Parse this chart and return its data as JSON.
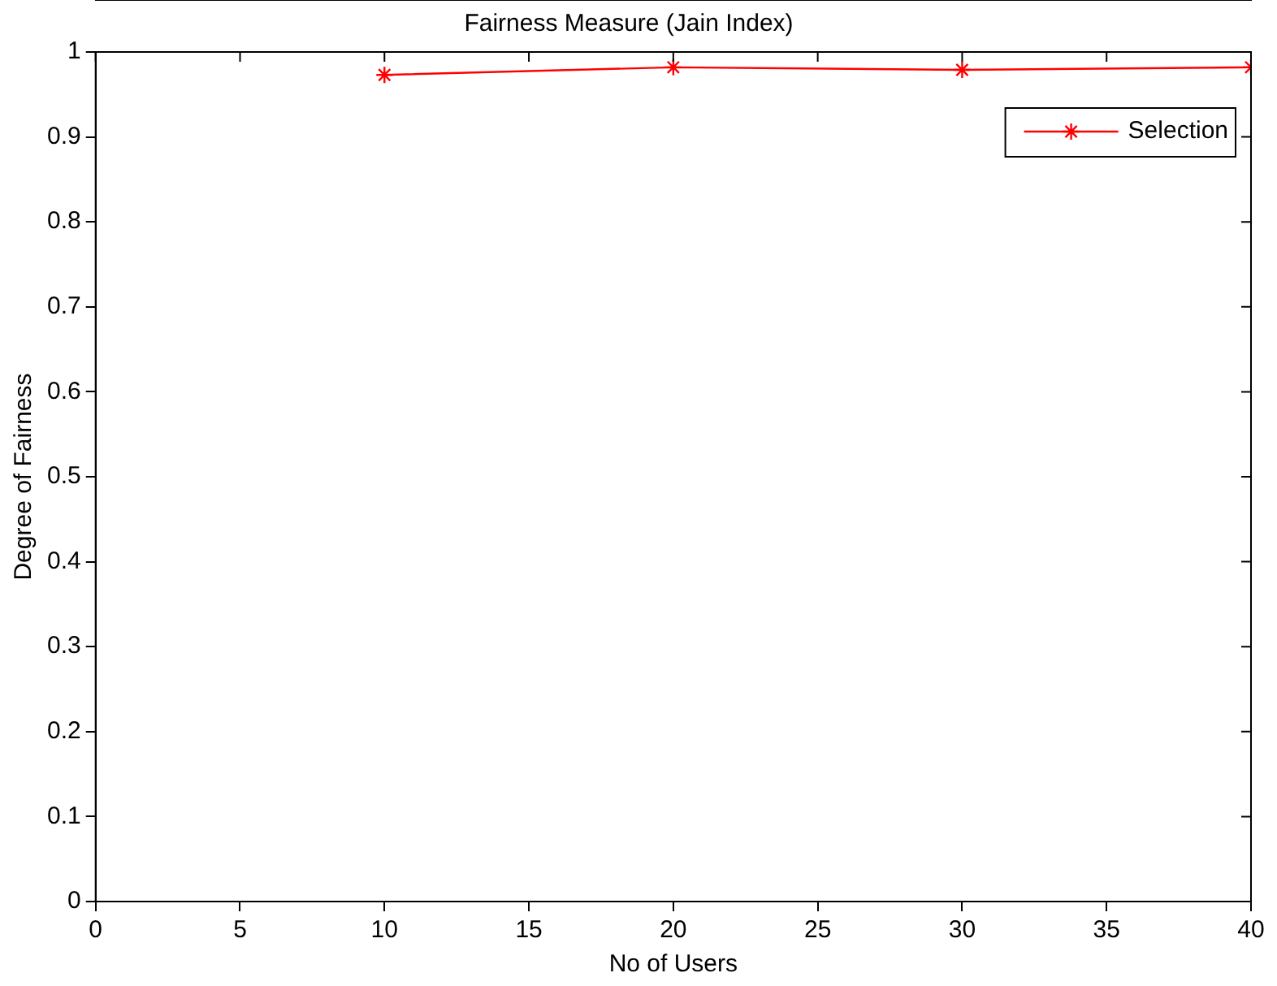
{
  "chart_data": {
    "type": "line",
    "title": "Fairness Measure (Jain Index)",
    "xlabel": "No of Users",
    "ylabel": "Degree of Fairness",
    "x": [
      10,
      20,
      30,
      40
    ],
    "series": [
      {
        "name": "Selection",
        "color": "#ff0000",
        "values": [
          0.973,
          0.982,
          0.979,
          0.982
        ]
      }
    ],
    "xlim": [
      0,
      40
    ],
    "xticks": [
      0,
      5,
      10,
      15,
      20,
      25,
      30,
      35,
      40
    ],
    "ylim": [
      0,
      1
    ],
    "yticks": [
      0,
      0.1,
      0.2,
      0.3,
      0.4,
      0.5,
      0.6,
      0.7,
      0.8,
      0.9,
      1
    ],
    "grid": false,
    "legend": "top right",
    "marker": "cross",
    "line_style": "solid"
  }
}
